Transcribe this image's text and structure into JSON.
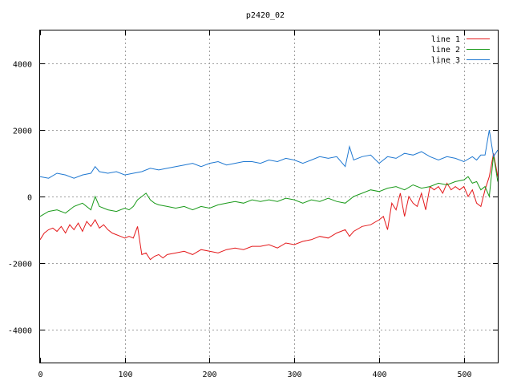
{
  "chart_data": {
    "type": "line",
    "title": "p2420_02",
    "xlabel": "",
    "ylabel": "",
    "xlim": [
      0,
      540
    ],
    "ylim": [
      -5000,
      5000
    ],
    "x_ticks": [
      0,
      100,
      200,
      300,
      400,
      500
    ],
    "y_ticks": [
      -4000,
      -2000,
      0,
      2000,
      4000
    ],
    "grid": true,
    "legend_position": "top-right",
    "series": [
      {
        "name": "line 1",
        "color": "#e41a1c",
        "x": [
          0,
          5,
          10,
          15,
          20,
          25,
          30,
          35,
          40,
          45,
          50,
          55,
          60,
          65,
          70,
          75,
          80,
          85,
          90,
          95,
          100,
          105,
          110,
          115,
          120,
          125,
          130,
          135,
          140,
          145,
          150,
          160,
          170,
          180,
          190,
          200,
          210,
          220,
          230,
          240,
          250,
          260,
          270,
          280,
          290,
          300,
          310,
          320,
          330,
          340,
          350,
          360,
          365,
          370,
          380,
          390,
          400,
          405,
          410,
          415,
          420,
          425,
          430,
          435,
          440,
          445,
          450,
          455,
          460,
          465,
          470,
          475,
          480,
          485,
          490,
          495,
          500,
          505,
          510,
          515,
          520,
          525,
          530,
          535,
          540
        ],
        "values": [
          -1300,
          -1100,
          -1000,
          -950,
          -1050,
          -900,
          -1100,
          -850,
          -1000,
          -800,
          -1050,
          -750,
          -900,
          -700,
          -950,
          -850,
          -1000,
          -1100,
          -1150,
          -1200,
          -1250,
          -1200,
          -1250,
          -900,
          -1750,
          -1700,
          -1900,
          -1800,
          -1750,
          -1850,
          -1750,
          -1700,
          -1650,
          -1750,
          -1600,
          -1650,
          -1700,
          -1600,
          -1550,
          -1600,
          -1500,
          -1500,
          -1450,
          -1550,
          -1400,
          -1450,
          -1350,
          -1300,
          -1200,
          -1250,
          -1100,
          -1000,
          -1200,
          -1050,
          -900,
          -850,
          -700,
          -600,
          -1000,
          -200,
          -400,
          100,
          -600,
          0,
          -200,
          -300,
          100,
          -400,
          300,
          200,
          300,
          100,
          400,
          200,
          300,
          200,
          300,
          0,
          200,
          -200,
          -300,
          200,
          600,
          1300,
          600
        ]
      },
      {
        "name": "line 2",
        "color": "#1a9a1a",
        "x": [
          0,
          10,
          20,
          30,
          40,
          50,
          60,
          65,
          70,
          80,
          90,
          100,
          105,
          110,
          115,
          120,
          125,
          130,
          135,
          140,
          150,
          160,
          170,
          180,
          190,
          200,
          210,
          220,
          230,
          240,
          250,
          260,
          270,
          280,
          290,
          300,
          310,
          320,
          330,
          340,
          350,
          360,
          370,
          380,
          390,
          400,
          410,
          420,
          430,
          440,
          450,
          460,
          470,
          480,
          490,
          500,
          505,
          510,
          515,
          520,
          525,
          530,
          535,
          540
        ],
        "values": [
          -600,
          -450,
          -400,
          -500,
          -300,
          -200,
          -400,
          0,
          -300,
          -400,
          -450,
          -350,
          -400,
          -300,
          -100,
          0,
          100,
          -100,
          -200,
          -250,
          -300,
          -350,
          -300,
          -400,
          -300,
          -350,
          -250,
          -200,
          -150,
          -200,
          -100,
          -150,
          -100,
          -150,
          -50,
          -100,
          -200,
          -100,
          -150,
          -50,
          -150,
          -200,
          0,
          100,
          200,
          150,
          250,
          300,
          200,
          350,
          250,
          300,
          400,
          350,
          450,
          500,
          600,
          400,
          450,
          200,
          300,
          0,
          1250,
          450
        ]
      },
      {
        "name": "line 3",
        "color": "#1f78d1",
        "x": [
          0,
          10,
          20,
          30,
          40,
          50,
          60,
          65,
          70,
          80,
          90,
          100,
          110,
          120,
          130,
          140,
          150,
          160,
          170,
          180,
          190,
          200,
          210,
          220,
          230,
          240,
          250,
          260,
          270,
          280,
          290,
          300,
          310,
          320,
          330,
          340,
          350,
          360,
          365,
          370,
          380,
          390,
          400,
          410,
          420,
          430,
          440,
          450,
          460,
          470,
          480,
          490,
          500,
          510,
          515,
          520,
          525,
          530,
          535,
          540
        ],
        "values": [
          600,
          550,
          700,
          650,
          550,
          650,
          700,
          900,
          750,
          700,
          750,
          650,
          700,
          750,
          850,
          800,
          850,
          900,
          950,
          1000,
          900,
          1000,
          1050,
          950,
          1000,
          1050,
          1050,
          1000,
          1100,
          1050,
          1150,
          1100,
          1000,
          1100,
          1200,
          1150,
          1200,
          900,
          1500,
          1100,
          1200,
          1250,
          1000,
          1200,
          1150,
          1300,
          1250,
          1350,
          1200,
          1100,
          1200,
          1150,
          1050,
          1200,
          1100,
          1250,
          1250,
          2000,
          1200,
          1400
        ]
      }
    ]
  }
}
